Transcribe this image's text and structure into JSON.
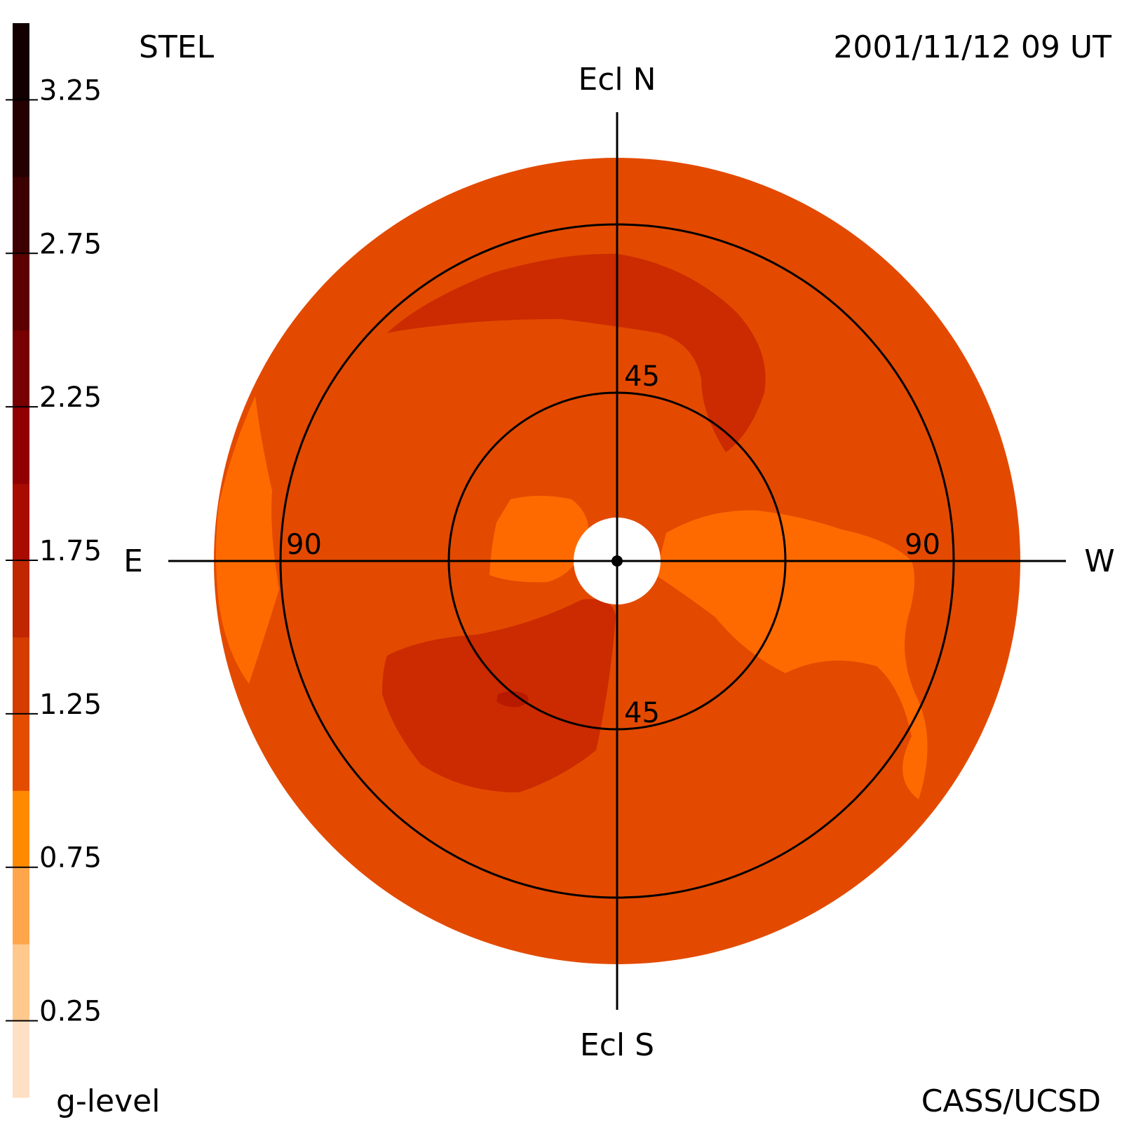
{
  "chart_data": {
    "type": "heatmap",
    "title_left": "STEL",
    "title_right": "2001/11/12 09 UT",
    "footer_left": "g-level",
    "footer_right": "CASS/UCSD",
    "direction_labels": {
      "north": "Ecl N",
      "south": "Ecl S",
      "east": "E",
      "west": "W"
    },
    "ring_labels": {
      "inner_top": "45",
      "inner_bottom": "45",
      "outer_left": "90",
      "outer_right": "90"
    },
    "ring_elongations_deg": [
      45,
      90
    ],
    "colorbar": {
      "label": "g-level",
      "range": [
        0,
        3.5
      ],
      "tick_values": [
        "0.25",
        "0.75",
        "1.25",
        "1.75",
        "2.25",
        "2.75",
        "3.25"
      ],
      "levels": [
        {
          "value": 0.125,
          "color": "#ffe0c4"
        },
        {
          "value": 0.375,
          "color": "#ffc88c"
        },
        {
          "value": 0.625,
          "color": "#ffa64c"
        },
        {
          "value": 0.875,
          "color": "#ff8a00"
        },
        {
          "value": 1.125,
          "color": "#e44c00"
        },
        {
          "value": 1.375,
          "color": "#d43c00"
        },
        {
          "value": 1.625,
          "color": "#c02600"
        },
        {
          "value": 1.875,
          "color": "#a80c00"
        },
        {
          "value": 2.125,
          "color": "#900000"
        },
        {
          "value": 2.375,
          "color": "#780000"
        },
        {
          "value": 2.625,
          "color": "#5c0000"
        },
        {
          "value": 2.875,
          "color": "#3c0000"
        },
        {
          "value": 3.125,
          "color": "#240000"
        },
        {
          "value": 3.375,
          "color": "#120000"
        }
      ]
    },
    "map_colors": {
      "background_level": "#e34a00",
      "low_region": "#ff6a00",
      "high_region": "#cc2a00",
      "peak_region": "#b81a00"
    }
  }
}
